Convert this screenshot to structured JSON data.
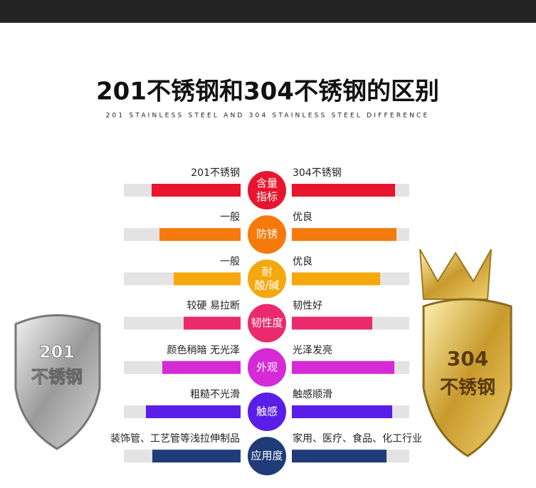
{
  "header": {
    "title": "201不锈钢和304不锈钢的区别",
    "subtitle": "201 STAINLESS STEEL AND 304 STAINLESS STEEL DIFFERENCE"
  },
  "rows": [
    {
      "left": "201不锈钢",
      "right": "304不锈钢",
      "center": [
        "含量",
        "指标"
      ]
    },
    {
      "left": "一般",
      "right": "优良",
      "center": [
        "防锈"
      ]
    },
    {
      "left": "一般",
      "right": "优良",
      "center": [
        "耐",
        "酸/碱"
      ]
    },
    {
      "left": "较硬 易拉断",
      "right": "韧性好",
      "center": [
        "韧性度"
      ]
    },
    {
      "left": "颜色稍暗 无光泽",
      "right": "光泽发亮",
      "center": [
        "外观"
      ]
    },
    {
      "left": "粗糙不光滑",
      "right": "触感顺滑",
      "center": [
        "触感"
      ]
    },
    {
      "left": "装饰管、工艺管等浅拉伸制品",
      "right": "家用、医疗、食品、化工行业",
      "center": [
        "应用度"
      ]
    }
  ],
  "shields": {
    "left": [
      "201",
      "不锈钢"
    ],
    "right": [
      "304",
      "不锈钢"
    ]
  }
}
